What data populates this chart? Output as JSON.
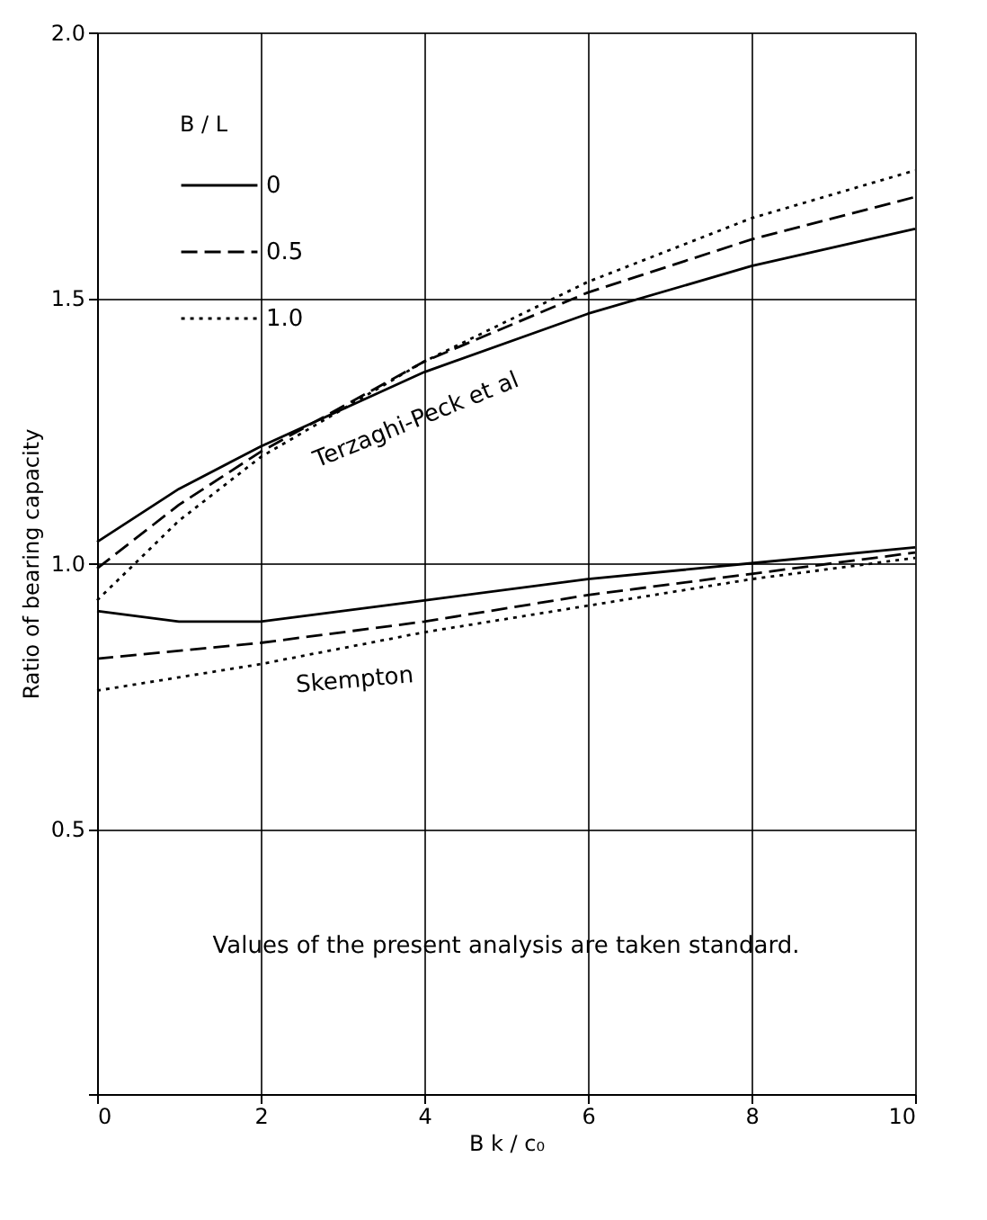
{
  "chart_data": {
    "type": "line",
    "xlabel": "B k / c₀",
    "ylabel": "Ratio of bearing capacity",
    "legend_title": "B / L",
    "xlim": [
      0,
      10
    ],
    "xticks": [
      0,
      2,
      4,
      6,
      8,
      10
    ],
    "ylim": [
      0,
      2.0
    ],
    "yticks": [
      {
        "value": 0,
        "label": null
      },
      {
        "value": 0.5,
        "label": "0.5"
      },
      {
        "value": 1.0,
        "label": "1.0"
      },
      {
        "value": 1.5,
        "label": "1.5"
      },
      {
        "value": 2.0,
        "label": "2.0"
      }
    ],
    "grid": true,
    "legend": "top left",
    "marker": "none",
    "series": [
      {
        "name": "0",
        "color": "#000000",
        "line_style": "solid",
        "x": [
          0,
          1,
          2,
          4,
          6,
          8,
          10
        ],
        "values": [
          1.04,
          1.14,
          1.22,
          1.36,
          1.47,
          1.56,
          1.63
        ]
      },
      {
        "name": "0.5",
        "color": "#000000",
        "line_style": "dashed",
        "x": [
          0,
          1,
          2,
          4,
          6,
          8,
          10
        ],
        "values": [
          0.99,
          1.11,
          1.21,
          1.38,
          1.51,
          1.61,
          1.69
        ]
      },
      {
        "name": "1.0",
        "color": "#000000",
        "line_style": "dotted",
        "x": [
          0,
          1,
          2,
          4,
          6,
          8,
          10
        ],
        "values": [
          0.93,
          1.08,
          1.2,
          1.38,
          1.53,
          1.65,
          1.74
        ]
      },
      {
        "color": "#000000",
        "line_style": "solid",
        "x": [
          0,
          1,
          2,
          4,
          6,
          8,
          10
        ],
        "values": [
          0.91,
          0.89,
          0.89,
          0.93,
          0.97,
          1.0,
          1.03
        ]
      },
      {
        "color": "#000000",
        "line_style": "dashed",
        "x": [
          0,
          2,
          4,
          6,
          8,
          10
        ],
        "values": [
          0.82,
          0.85,
          0.89,
          0.94,
          0.98,
          1.02
        ]
      },
      {
        "color": "#000000",
        "line_style": "dotted",
        "x": [
          0,
          2,
          4,
          6,
          8,
          10
        ],
        "values": [
          0.76,
          0.81,
          0.87,
          0.92,
          0.97,
          1.01
        ]
      }
    ],
    "annotations": [
      "Terzaghi-Peck et al",
      "Skempton",
      "Values of the present analysis are taken standard."
    ]
  }
}
